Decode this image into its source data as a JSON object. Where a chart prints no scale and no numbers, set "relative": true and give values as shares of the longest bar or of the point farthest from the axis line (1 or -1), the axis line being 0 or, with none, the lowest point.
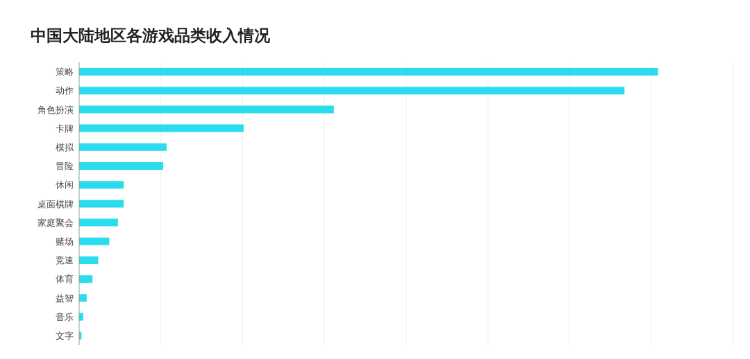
{
  "chart_data": {
    "type": "bar",
    "orientation": "horizontal",
    "relative": true,
    "title": "中国大陆地区各游戏品类收入情况",
    "categories": [
      "策略",
      "动作",
      "角色扮演",
      "卡牌",
      "模拟",
      "冒险",
      "休闲",
      "桌面棋牌",
      "家庭聚会",
      "赌场",
      "竞速",
      "体育",
      "益智",
      "音乐",
      "文字"
    ],
    "series": [
      {
        "color": "#2adced",
        "values": [
          1,
          0.942,
          0.44,
          0.284,
          0.151,
          0.145,
          0.077,
          0.077,
          0.067,
          0.052,
          0.033,
          0.023,
          0.013,
          0.007,
          0.004
        ]
      }
    ],
    "grid": "x",
    "legend": false
  }
}
